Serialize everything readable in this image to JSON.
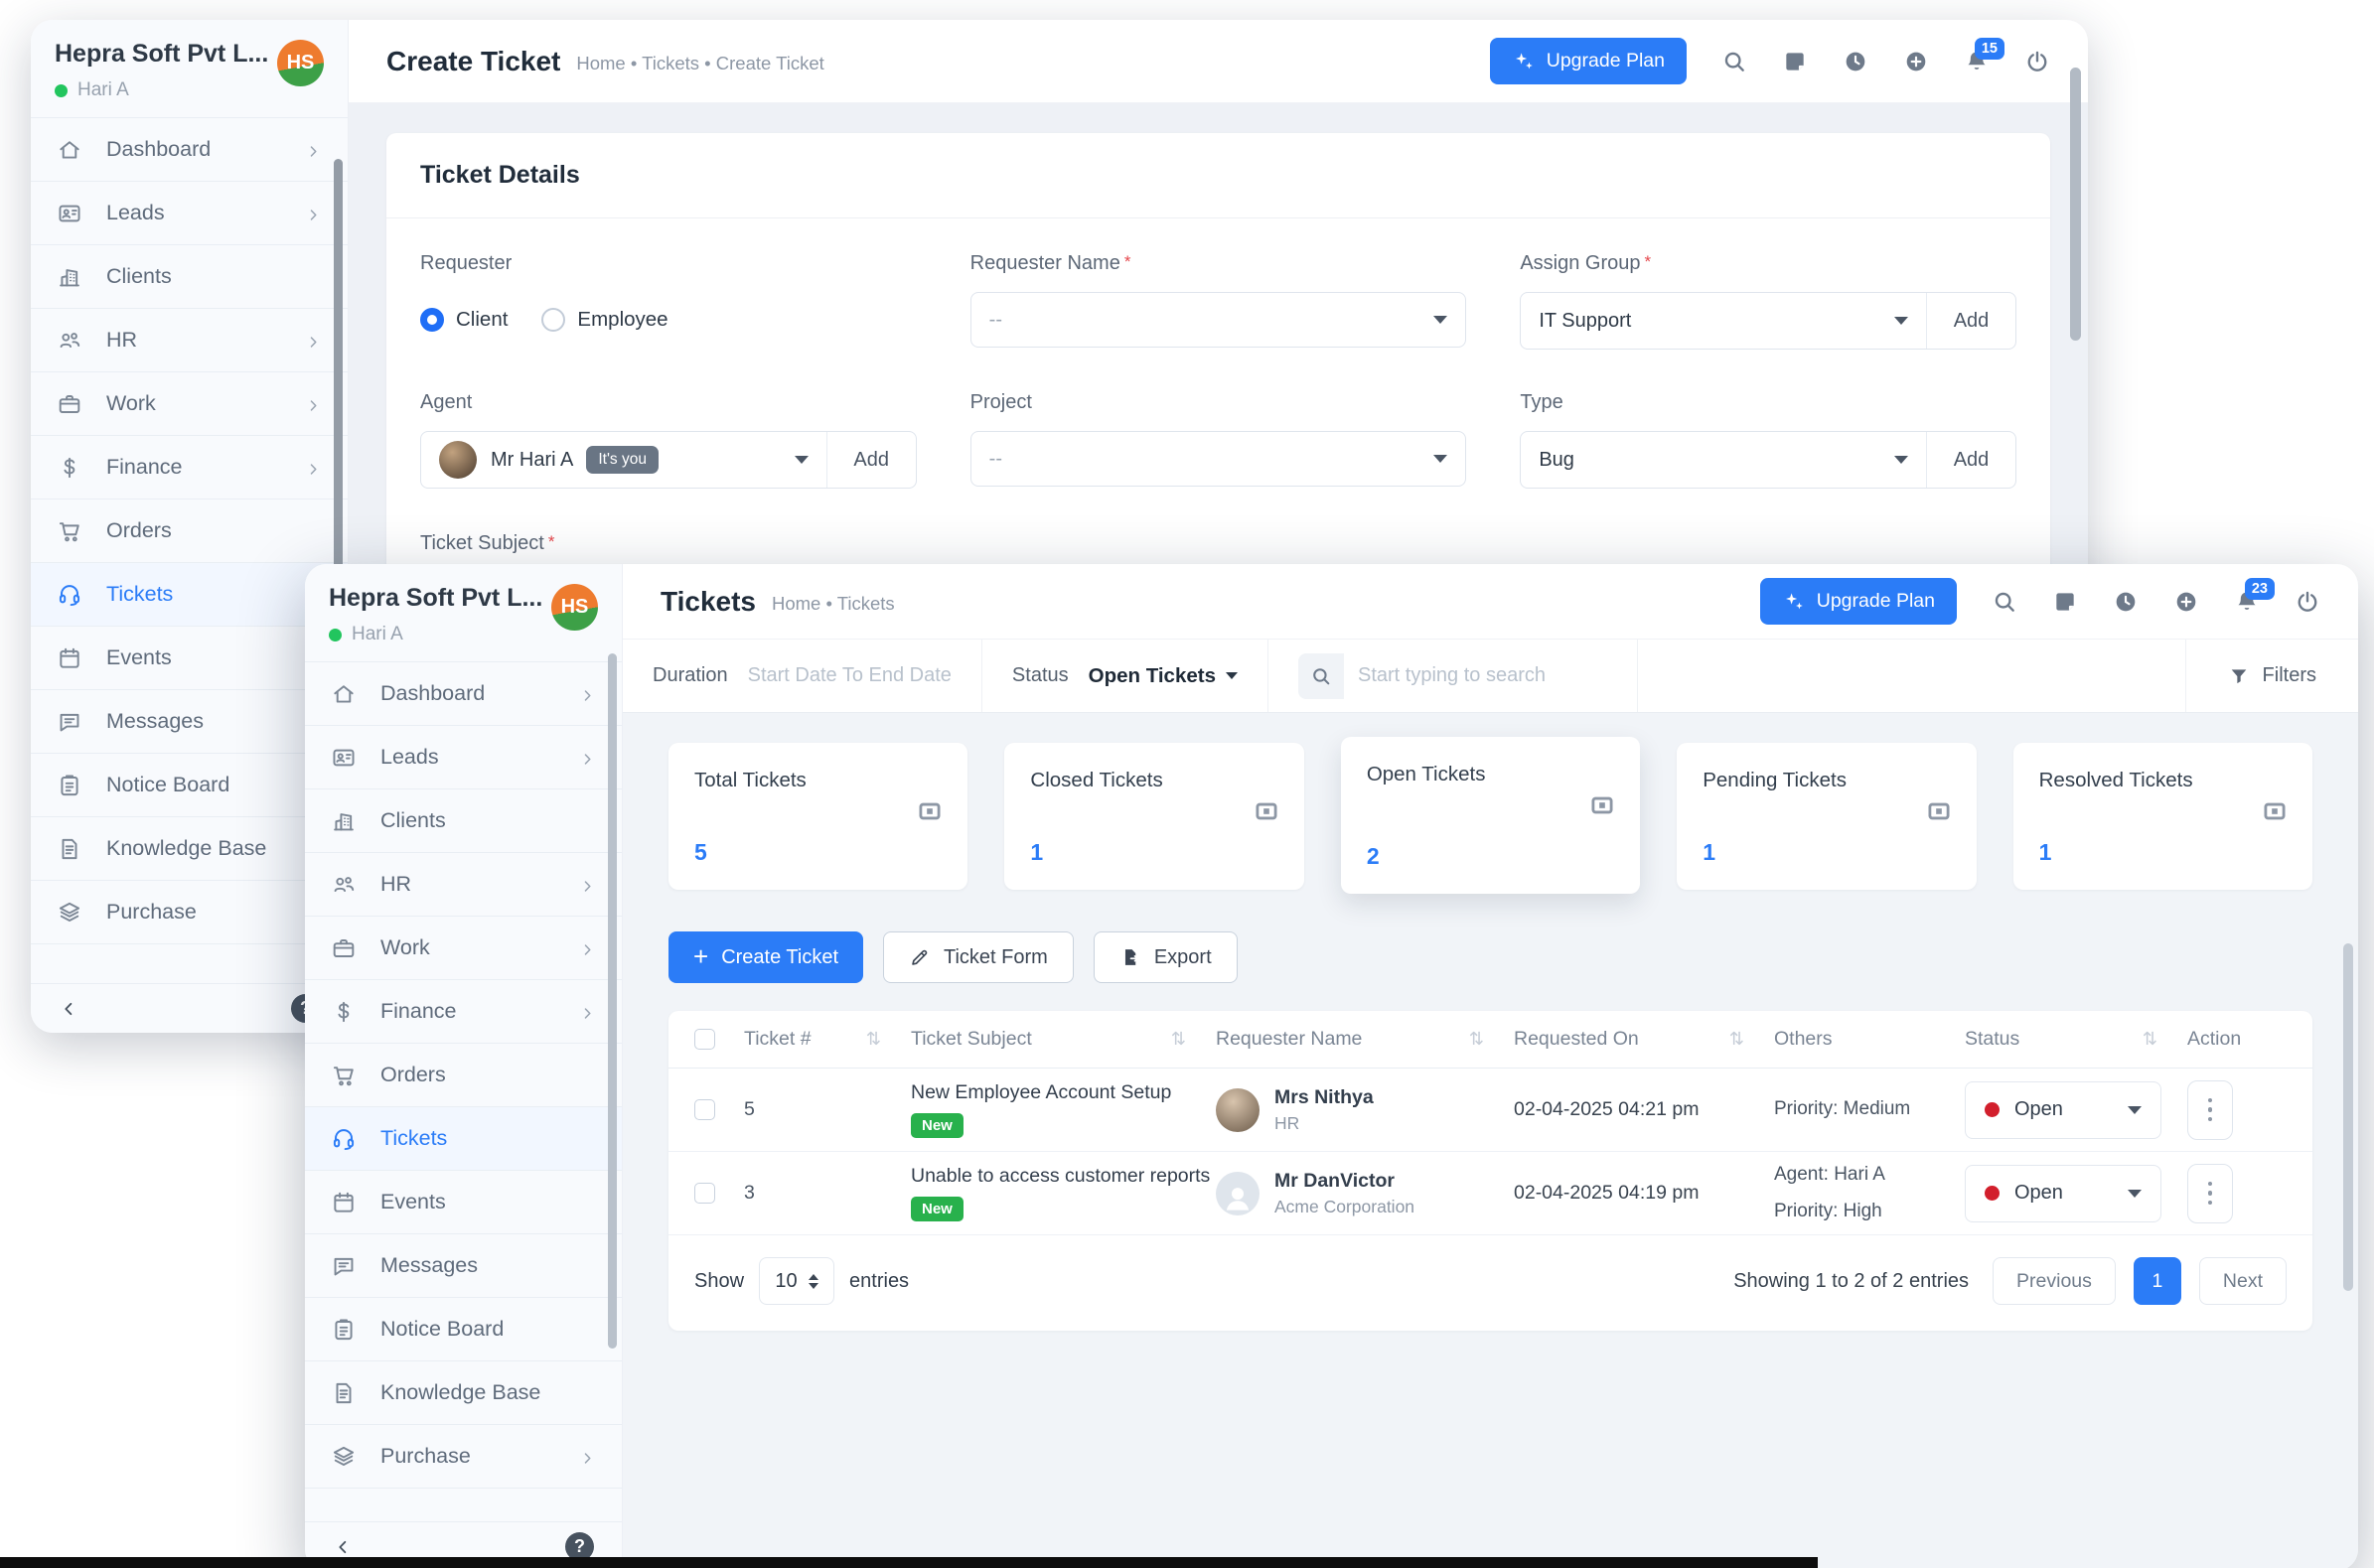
{
  "colors": {
    "accent": "#2b7cf7",
    "badge_green": "#28b14c",
    "status_red": "#d21f2c",
    "logo_orange": "#ee7b2e",
    "logo_green": "#3da047"
  },
  "sidebar": {
    "company": "Hepra Soft Pvt L...",
    "user": "Hari A",
    "logo_text": "HS",
    "items": [
      {
        "label": "Dashboard",
        "icon": "home"
      },
      {
        "label": "Leads",
        "icon": "idcard"
      },
      {
        "label": "Clients",
        "icon": "building"
      },
      {
        "label": "HR",
        "icon": "people"
      },
      {
        "label": "Work",
        "icon": "briefcase"
      },
      {
        "label": "Finance",
        "icon": "dollar"
      },
      {
        "label": "Orders",
        "icon": "cart"
      },
      {
        "label": "Tickets",
        "icon": "headset",
        "active": true
      },
      {
        "label": "Events",
        "icon": "calendar"
      },
      {
        "label": "Messages",
        "icon": "chat"
      },
      {
        "label": "Notice Board",
        "icon": "clipboard"
      },
      {
        "label": "Knowledge Base",
        "icon": "document"
      },
      {
        "label": "Purchase",
        "icon": "layers"
      }
    ]
  },
  "back_window": {
    "title": "Create Ticket",
    "breadcrumb": "Home • Tickets • Create Ticket",
    "upgrade_label": "Upgrade Plan",
    "notification_count": "15",
    "form": {
      "card_title": "Ticket Details",
      "requester_label": "Requester",
      "option_client": "Client",
      "option_employee": "Employee",
      "requester_name_label": "Requester Name",
      "requester_name_value": "--",
      "assign_group_label": "Assign Group",
      "assign_group_value": "IT Support",
      "add_label": "Add",
      "agent_label": "Agent",
      "agent_value": "Mr Hari A",
      "agent_badge": "It's you",
      "project_label": "Project",
      "project_value": "--",
      "type_label": "Type",
      "type_value": "Bug",
      "ticket_subject_label": "Ticket Subject"
    }
  },
  "front_window": {
    "title": "Tickets",
    "breadcrumb": "Home • Tickets",
    "upgrade_label": "Upgrade Plan",
    "notification_count": "23",
    "filters": {
      "duration_label": "Duration",
      "duration_placeholder": "Start Date To End Date",
      "status_label": "Status",
      "status_value": "Open Tickets",
      "search_placeholder": "Start typing to search",
      "filters_label": "Filters"
    },
    "stats": [
      {
        "label": "Total Tickets",
        "value": "5"
      },
      {
        "label": "Closed Tickets",
        "value": "1"
      },
      {
        "label": "Open Tickets",
        "value": "2"
      },
      {
        "label": "Pending Tickets",
        "value": "1"
      },
      {
        "label": "Resolved Tickets",
        "value": "1"
      }
    ],
    "actions": {
      "create": "Create Ticket",
      "ticket_form": "Ticket Form",
      "export": "Export"
    },
    "table": {
      "columns": [
        "Ticket #",
        "Ticket Subject",
        "Requester Name",
        "Requested On",
        "Others",
        "Status",
        "Action"
      ],
      "rows": [
        {
          "ticket_no": "5",
          "subject": "New Employee Account Setup",
          "badge": "New",
          "requester": "Mrs Nithya",
          "requester_sub": "HR",
          "requested_on": "02-04-2025 04:21 pm",
          "others_1": "Priority: Medium",
          "others_2": "",
          "status": "Open"
        },
        {
          "ticket_no": "3",
          "subject": "Unable to access customer reports",
          "badge": "New",
          "requester": "Mr DanVictor",
          "requester_sub": "Acme Corporation",
          "requested_on": "02-04-2025 04:19 pm",
          "others_1": "Agent: Hari A",
          "others_2": "Priority: High",
          "status": "Open"
        }
      ]
    },
    "pagination": {
      "show_label": "Show",
      "page_size": "10",
      "entries_label": "entries",
      "summary": "Showing 1 to 2 of 2 entries",
      "previous": "Previous",
      "current_page": "1",
      "next": "Next"
    }
  }
}
